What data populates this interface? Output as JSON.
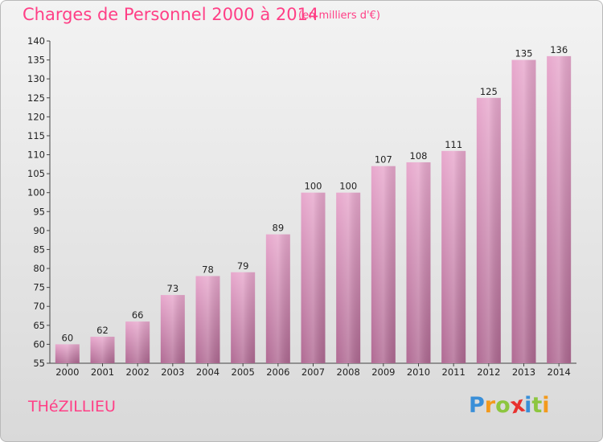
{
  "chart_data": {
    "type": "bar",
    "title": "Charges de Personnel 2000 à 2014",
    "subtitle": "(en milliers d'€)",
    "categories": [
      "2000",
      "2001",
      "2002",
      "2003",
      "2004",
      "2005",
      "2006",
      "2007",
      "2008",
      "2009",
      "2010",
      "2011",
      "2012",
      "2013",
      "2014"
    ],
    "values": [
      60,
      62,
      66,
      73,
      78,
      79,
      89,
      100,
      100,
      107,
      108,
      111,
      125,
      135,
      136
    ],
    "data_labels": [
      "60",
      "62",
      "66",
      "73",
      "78",
      "79",
      "89",
      "100",
      "100",
      "107",
      "108",
      "111",
      "125",
      "135",
      "136"
    ],
    "ylim": [
      55,
      140
    ],
    "yticks": [
      55,
      60,
      65,
      70,
      75,
      80,
      85,
      90,
      95,
      100,
      105,
      110,
      115,
      120,
      125,
      130,
      135,
      140
    ],
    "ytick_labels": [
      "55",
      "60",
      "65",
      "70",
      "75",
      "80",
      "85",
      "90",
      "95",
      "100",
      "105",
      "110",
      "115",
      "120",
      "125",
      "130",
      "135",
      "140"
    ],
    "grid": false,
    "bar_color": "#e4a0c6"
  },
  "footer": {
    "commune": "THéZILLIEU",
    "brand_letters": [
      {
        "char": "P",
        "color": "#3a8fd8"
      },
      {
        "char": "r",
        "color": "#f39a1c"
      },
      {
        "char": "o",
        "color": "#8dc63f"
      },
      {
        "char": "x",
        "color": "#e8312f"
      },
      {
        "char": "i",
        "color": "#3a8fd8"
      },
      {
        "char": "t",
        "color": "#8dc63f"
      },
      {
        "char": "i",
        "color": "#f39a1c"
      }
    ]
  }
}
